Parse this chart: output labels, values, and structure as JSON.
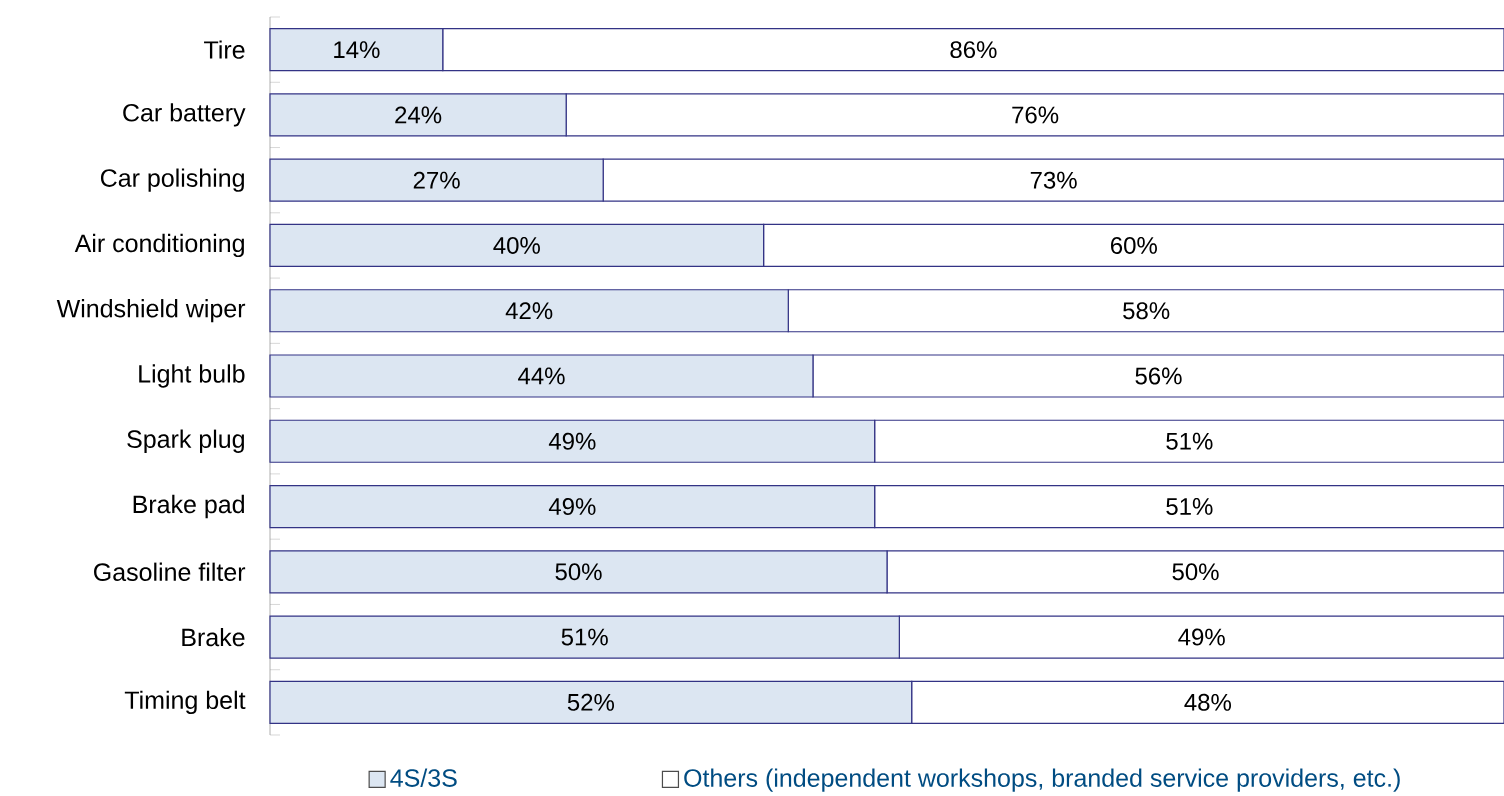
{
  "chart_data": {
    "type": "bar",
    "orientation": "horizontal",
    "stacked": true,
    "legend": "bottom",
    "categories": [
      "Tire",
      "Car battery",
      "Car polishing",
      "Air conditioning",
      "Windshield wiper",
      "Light bulb",
      "Spark plug",
      "Brake pad",
      "Gasoline filter",
      "Brake",
      "Timing belt"
    ],
    "series": [
      {
        "name": "4S/3S",
        "color": "#dce6f2",
        "values": [
          14,
          24,
          27,
          40,
          42,
          44,
          49,
          49,
          50,
          51,
          52
        ],
        "value_labels": [
          "14%",
          "24%",
          "27%",
          "40%",
          "42%",
          "44%",
          "49%",
          "49%",
          "50%",
          "51%",
          "52%"
        ]
      },
      {
        "name": "Others (independent workshops, branded service providers, etc.)",
        "color": "#ffffff",
        "values": [
          86,
          76,
          73,
          60,
          58,
          56,
          51,
          51,
          50,
          49,
          48
        ],
        "value_labels": [
          "86%",
          "76%",
          "73%",
          "60%",
          "58%",
          "56%",
          "51%",
          "51%",
          "50%",
          "49%",
          "48%"
        ]
      }
    ]
  }
}
